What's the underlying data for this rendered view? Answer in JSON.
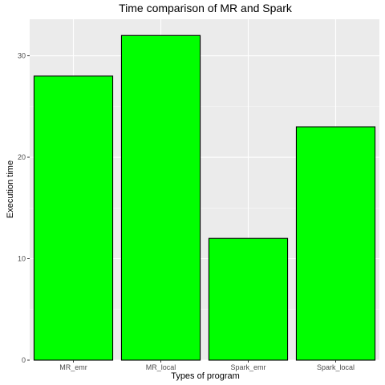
{
  "chart_data": {
    "type": "bar",
    "title": "Time comparison of MR and Spark",
    "xlabel": "Types of program",
    "ylabel": "Execution time",
    "categories": [
      "MR_emr",
      "MR_local",
      "Spark_emr",
      "Spark_local"
    ],
    "values": [
      28,
      32,
      12,
      23
    ],
    "ylim": [
      0,
      33.6
    ],
    "yticks": [
      0,
      10,
      20,
      30
    ],
    "grid": true,
    "bar_fill": "#00ff00",
    "bar_stroke": "#000000",
    "panel_background": "#ebebeb",
    "grid_color": "#ffffff"
  }
}
